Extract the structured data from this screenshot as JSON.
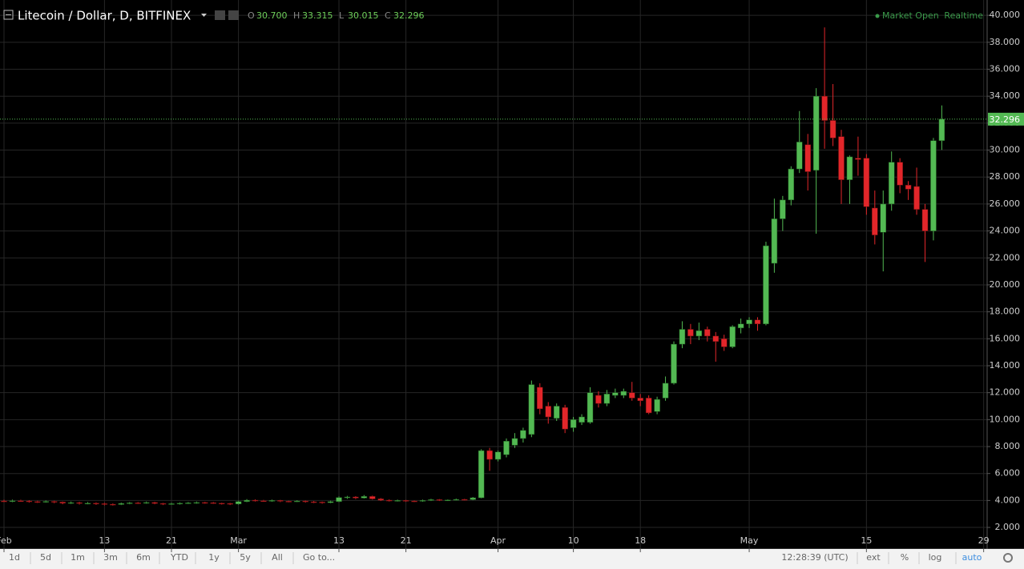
{
  "header": {
    "title": "Litecoin / Dollar, D, BITFINEX",
    "ohlc": [
      {
        "label": "O",
        "value": "30.700"
      },
      {
        "label": "H",
        "value": "33.315"
      },
      {
        "label": "L",
        "value": "30.015"
      },
      {
        "label": "C",
        "value": "32.296"
      }
    ],
    "status": "Market Open",
    "feed": "Realtime"
  },
  "chart_data": {
    "type": "candlestick",
    "up_color": "#53b953",
    "down_color": "#e2262a",
    "grid": true,
    "grid_color": "#262626",
    "categories": [
      "Feb 1",
      "Feb 2",
      "Feb 3",
      "Feb 4",
      "Feb 5",
      "Feb 6",
      "Feb 7",
      "Feb 8",
      "Feb 9",
      "Feb 10",
      "Feb 11",
      "Feb 12",
      "Feb 13",
      "Feb 14",
      "Feb 15",
      "Feb 16",
      "Feb 17",
      "Feb 18",
      "Feb 19",
      "Feb 20",
      "Feb 21",
      "Feb 22",
      "Feb 23",
      "Feb 24",
      "Feb 25",
      "Feb 26",
      "Feb 27",
      "Feb 28",
      "Mar 1",
      "Mar 2",
      "Mar 3",
      "Mar 4",
      "Mar 5",
      "Mar 6",
      "Mar 7",
      "Mar 8",
      "Mar 9",
      "Mar 10",
      "Mar 11",
      "Mar 12",
      "Mar 13",
      "Mar 14",
      "Mar 15",
      "Mar 16",
      "Mar 17",
      "Mar 18",
      "Mar 19",
      "Mar 20",
      "Mar 21",
      "Mar 22",
      "Mar 23",
      "Mar 24",
      "Mar 25",
      "Mar 26",
      "Mar 27",
      "Mar 28",
      "Mar 29",
      "Mar 30",
      "Mar 31",
      "Apr 1",
      "Apr 2",
      "Apr 3",
      "Apr 4",
      "Apr 5",
      "Apr 6",
      "Apr 7",
      "Apr 8",
      "Apr 9",
      "Apr 10",
      "Apr 11",
      "Apr 12",
      "Apr 13",
      "Apr 14",
      "Apr 15",
      "Apr 16",
      "Apr 17",
      "Apr 18",
      "Apr 19",
      "Apr 20",
      "Apr 21",
      "Apr 22",
      "Apr 23",
      "Apr 24",
      "Apr 25",
      "Apr 26",
      "Apr 27",
      "Apr 28",
      "Apr 29",
      "Apr 30",
      "May 1",
      "May 2",
      "May 3",
      "May 4",
      "May 5",
      "May 6",
      "May 7",
      "May 8",
      "May 9",
      "May 10",
      "May 11",
      "May 12",
      "May 13",
      "May 14",
      "May 15",
      "May 16",
      "May 17",
      "May 18",
      "May 19",
      "May 20",
      "May 21",
      "May 22",
      "May 23",
      "May 24",
      "May 25",
      "May 26",
      "May 27",
      "May 28",
      "May 29"
    ],
    "open": [
      3.96,
      3.95,
      3.98,
      3.96,
      3.92,
      3.9,
      3.93,
      3.88,
      3.8,
      3.84,
      3.78,
      3.8,
      3.76,
      3.72,
      3.7,
      3.78,
      3.82,
      3.8,
      3.85,
      3.78,
      3.74,
      3.76,
      3.8,
      3.82,
      3.85,
      3.83,
      3.8,
      3.78,
      3.74,
      3.92,
      4.02,
      3.98,
      3.96,
      4.0,
      3.94,
      3.92,
      3.96,
      3.9,
      3.88,
      3.84,
      3.92,
      4.22,
      4.26,
      4.18,
      4.3,
      4.12,
      4.02,
      3.98,
      4.0,
      3.96,
      3.94,
      4.0,
      4.06,
      4.02,
      4.04,
      4.08,
      4.06,
      4.2,
      7.7,
      7.05,
      7.4,
      8.1,
      8.6,
      8.9,
      12.4,
      11.0,
      10.1,
      10.9,
      9.4,
      9.8,
      9.8,
      11.8,
      11.2,
      11.8,
      11.8,
      12.0,
      11.6,
      11.6,
      10.6,
      11.6,
      12.7,
      15.6,
      16.7,
      16.2,
      16.7,
      16.2,
      16.0,
      15.4,
      16.8,
      17.1,
      17.4,
      17.1,
      21.6,
      24.9,
      26.3,
      28.6,
      30.4,
      28.5,
      34.0,
      32.2,
      31.0,
      27.8,
      29.4,
      29.4,
      25.7,
      23.9,
      26.0,
      29.1,
      27.4,
      27.3,
      25.6,
      24.0,
      30.7,
      null,
      null,
      null,
      null,
      null
    ],
    "high": [
      4.05,
      4.06,
      4.05,
      4.02,
      3.98,
      4.0,
      3.98,
      3.92,
      3.92,
      3.9,
      3.88,
      3.86,
      3.82,
      3.78,
      3.84,
      3.88,
      3.88,
      3.92,
      3.9,
      3.82,
      3.82,
      3.86,
      3.88,
      3.92,
      3.9,
      3.88,
      3.84,
      3.82,
      3.98,
      4.1,
      4.08,
      4.04,
      4.06,
      4.04,
      3.98,
      4.02,
      4.0,
      3.96,
      3.92,
      3.98,
      4.3,
      4.34,
      4.32,
      4.4,
      4.36,
      4.18,
      4.08,
      4.06,
      4.04,
      4.0,
      4.06,
      4.12,
      4.1,
      4.08,
      4.14,
      4.12,
      4.26,
      7.8,
      7.9,
      7.7,
      8.6,
      9.0,
      9.4,
      12.9,
      12.7,
      11.3,
      11.2,
      11.1,
      10.2,
      10.4,
      12.4,
      12.1,
      12.2,
      12.3,
      12.3,
      12.8,
      11.9,
      11.8,
      11.7,
      13.2,
      15.8,
      17.3,
      17.1,
      17.2,
      16.9,
      16.5,
      16.3,
      17.0,
      17.5,
      17.6,
      17.6,
      23.2,
      26.4,
      26.6,
      28.8,
      32.9,
      31.2,
      34.6,
      39.1,
      34.9,
      31.5,
      29.6,
      31.0,
      29.7,
      27.0,
      27.0,
      29.9,
      29.4,
      27.7,
      28.7,
      26.0,
      30.9,
      33.315,
      null,
      null,
      null,
      null,
      null
    ],
    "low": [
      3.88,
      3.88,
      3.9,
      3.84,
      3.82,
      3.84,
      3.8,
      3.72,
      3.74,
      3.7,
      3.72,
      3.68,
      3.64,
      3.62,
      3.66,
      3.72,
      3.74,
      3.76,
      3.72,
      3.66,
      3.68,
      3.7,
      3.74,
      3.76,
      3.76,
      3.74,
      3.7,
      3.66,
      3.7,
      3.88,
      3.92,
      3.9,
      3.9,
      3.88,
      3.86,
      3.88,
      3.84,
      3.8,
      3.76,
      3.8,
      3.88,
      4.12,
      4.1,
      4.14,
      4.06,
      3.96,
      3.92,
      3.92,
      3.9,
      3.88,
      3.9,
      3.96,
      3.96,
      3.96,
      4.0,
      4.0,
      4.02,
      4.16,
      6.2,
      6.9,
      7.2,
      7.9,
      8.3,
      8.7,
      10.4,
      9.7,
      9.9,
      9.0,
      9.1,
      9.6,
      9.7,
      10.9,
      11.0,
      11.6,
      11.6,
      11.4,
      11.0,
      10.4,
      10.4,
      11.4,
      12.6,
      15.3,
      15.6,
      15.9,
      15.8,
      14.3,
      15.1,
      15.3,
      16.4,
      16.8,
      16.6,
      17.0,
      20.9,
      24.0,
      25.9,
      28.3,
      27.0,
      23.8,
      30.1,
      30.3,
      26.0,
      26.0,
      28.1,
      25.2,
      23.0,
      21.0,
      25.5,
      26.8,
      26.3,
      25.2,
      21.7,
      23.3,
      30.015,
      null,
      null,
      null,
      null,
      null
    ],
    "close": [
      3.95,
      3.98,
      3.96,
      3.92,
      3.9,
      3.93,
      3.88,
      3.8,
      3.84,
      3.78,
      3.8,
      3.76,
      3.72,
      3.7,
      3.78,
      3.82,
      3.8,
      3.85,
      3.78,
      3.74,
      3.76,
      3.8,
      3.82,
      3.85,
      3.83,
      3.8,
      3.78,
      3.74,
      3.92,
      4.02,
      3.98,
      3.96,
      4.0,
      3.94,
      3.92,
      3.96,
      3.9,
      3.88,
      3.84,
      3.92,
      4.22,
      4.26,
      4.18,
      4.3,
      4.12,
      4.02,
      3.98,
      4.0,
      3.96,
      3.94,
      4.0,
      4.06,
      4.02,
      4.04,
      4.08,
      4.06,
      4.2,
      7.7,
      7.05,
      7.6,
      8.4,
      8.6,
      9.2,
      12.6,
      10.8,
      10.2,
      11.0,
      9.3,
      10.0,
      10.2,
      12.0,
      11.2,
      11.9,
      12.0,
      12.1,
      11.6,
      11.4,
      10.5,
      11.5,
      12.7,
      15.6,
      16.7,
      16.2,
      16.6,
      16.2,
      15.8,
      15.4,
      16.9,
      17.1,
      17.4,
      17.1,
      22.9,
      24.9,
      26.3,
      28.6,
      30.6,
      28.4,
      34.0,
      32.2,
      30.9,
      27.8,
      29.5,
      29.3,
      25.8,
      23.7,
      26.0,
      29.1,
      27.4,
      27.1,
      25.6,
      24.0,
      30.7,
      32.296,
      null,
      null,
      null,
      null,
      null
    ],
    "xticks": [
      {
        "value": "Feb 1",
        "label": "Feb"
      },
      {
        "value": "Feb 13",
        "label": "13"
      },
      {
        "value": "Feb 21",
        "label": "21"
      },
      {
        "value": "Mar 1",
        "label": "Mar"
      },
      {
        "value": "Mar 13",
        "label": "13"
      },
      {
        "value": "Mar 21",
        "label": "21"
      },
      {
        "value": "Apr 1",
        "label": "Apr"
      },
      {
        "value": "Apr 10",
        "label": "10"
      },
      {
        "value": "Apr 18",
        "label": "18"
      },
      {
        "value": "May 1",
        "label": "May"
      },
      {
        "value": "May 15",
        "label": "15"
      },
      {
        "value": "May 29",
        "label": "29"
      }
    ],
    "ylim": [
      0.4,
      40.9
    ],
    "yticks": [
      {
        "value": 2,
        "label": "2.000"
      },
      {
        "value": 4,
        "label": "4.000"
      },
      {
        "value": 6,
        "label": "6.000"
      },
      {
        "value": 8,
        "label": "8.000"
      },
      {
        "value": 10,
        "label": "10.000"
      },
      {
        "value": 12,
        "label": "12.000"
      },
      {
        "value": 14,
        "label": "14.000"
      },
      {
        "value": 16,
        "label": "16.000"
      },
      {
        "value": 18,
        "label": "18.000"
      },
      {
        "value": 20,
        "label": "20.000"
      },
      {
        "value": 22,
        "label": "22.000"
      },
      {
        "value": 24,
        "label": "24.000"
      },
      {
        "value": 26,
        "label": "26.000"
      },
      {
        "value": 28,
        "label": "28.000"
      },
      {
        "value": 30,
        "label": "30.000"
      },
      {
        "value": 32,
        "label": "32.000"
      },
      {
        "value": 34,
        "label": "34.000"
      },
      {
        "value": 36,
        "label": "36.000"
      },
      {
        "value": 38,
        "label": "38.000"
      },
      {
        "value": 40,
        "label": "40.000"
      }
    ]
  },
  "toolbar": {
    "ranges": [
      "1d",
      "5d",
      "1m",
      "3m",
      "6m",
      "YTD",
      "1y",
      "5y",
      "All"
    ],
    "goto": "Go to...",
    "time": "12:28:39 (UTC)",
    "options": [
      "ext",
      "%",
      "log",
      "auto"
    ]
  }
}
